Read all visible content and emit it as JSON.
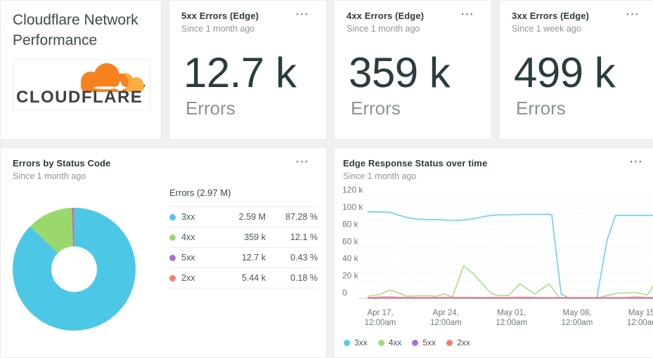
{
  "icons": {
    "overflow_menu": "⋯"
  },
  "header_card": {
    "title": "Cloudflare Network Performance",
    "logo_text": "CLOUDFLARE",
    "logo_colors": {
      "cloud_main": "#f6821f",
      "cloud_light": "#fbad41",
      "text": "#3f4042"
    }
  },
  "billboards": [
    {
      "title": "5xx Errors (Edge)",
      "subtitle": "Since 1 month ago",
      "value": "12.7 k",
      "unit": "Errors"
    },
    {
      "title": "4xx Errors (Edge)",
      "subtitle": "Since 1 month ago",
      "value": "359 k",
      "unit": "Errors"
    },
    {
      "title": "3xx Errors (Edge)",
      "subtitle": "Since 1 week ago",
      "value": "499 k",
      "unit": "Errors"
    }
  ],
  "pie_card": {
    "title": "Errors by Status Code",
    "subtitle": "Since 1 month ago"
  },
  "line_card": {
    "title": "Edge Response Status over time",
    "subtitle": "Since 1 month ago"
  },
  "chart_data": [
    {
      "type": "pie",
      "title": "Errors by Status Code",
      "total_label": "Errors (2.97 M)",
      "legend_position": "right",
      "slices": [
        {
          "name": "3xx",
          "value_label": "2.59 M",
          "pct": 87.28,
          "pct_label": "87.28 %",
          "color": "#4cc8e6"
        },
        {
          "name": "4xx",
          "value_label": "359 k",
          "pct": 12.1,
          "pct_label": "12.1 %",
          "color": "#9ad86f"
        },
        {
          "name": "5xx",
          "value_label": "12.7 k",
          "pct": 0.43,
          "pct_label": "0.43 %",
          "color": "#ab6fd2"
        },
        {
          "name": "2xx",
          "value_label": "5.44 k",
          "pct": 0.18,
          "pct_label": "0.18 %",
          "color": "#f2836b"
        }
      ]
    },
    {
      "type": "line",
      "title": "Edge Response Status over time",
      "x_unit": "days since Apr 17 12:00am",
      "y_unit": "errors, thousands",
      "ylim": [
        0,
        120
      ],
      "grid": true,
      "legend_position": "bottom",
      "y_ticks": [
        {
          "label": "120 k",
          "value": 120
        },
        {
          "label": "100 k",
          "value": 100
        },
        {
          "label": "80 k",
          "value": 80
        },
        {
          "label": "60 k",
          "value": 60
        },
        {
          "label": "40 k",
          "value": 40
        },
        {
          "label": "20 k",
          "value": 20
        },
        {
          "label": "0",
          "value": 0
        }
      ],
      "x_ticks": [
        {
          "day": 0,
          "line1": "Apr 17,",
          "line2": "12:00am"
        },
        {
          "day": 7,
          "line1": "Apr 24,",
          "line2": "12:00am"
        },
        {
          "day": 14,
          "line1": "May 01,",
          "line2": "12:00am"
        },
        {
          "day": 21,
          "line1": "May 08,",
          "line2": "12:00am"
        },
        {
          "day": 28,
          "line1": "May 15,",
          "line2": "12:00am"
        }
      ],
      "series": [
        {
          "name": "3xx",
          "color": "#58cbe9",
          "points": [
            [
              -1.3,
              101
            ],
            [
              0,
              101
            ],
            [
              1,
              100.5
            ],
            [
              2,
              97
            ],
            [
              3,
              94
            ],
            [
              4,
              92.5
            ],
            [
              5,
              92
            ],
            [
              6,
              92
            ],
            [
              7,
              91.5
            ],
            [
              8,
              91
            ],
            [
              9,
              91.5
            ],
            [
              10,
              93
            ],
            [
              11,
              95.5
            ],
            [
              12,
              97
            ],
            [
              13,
              97.5
            ],
            [
              14,
              97.5
            ],
            [
              15,
              98
            ],
            [
              16,
              98
            ],
            [
              17,
              98
            ],
            [
              18,
              98
            ],
            [
              18.3,
              97.5
            ],
            [
              19.3,
              5
            ],
            [
              20,
              1
            ],
            [
              21,
              0.4
            ],
            [
              22,
              0.4
            ],
            [
              23.1,
              0.4
            ],
            [
              24.2,
              68
            ],
            [
              25.1,
              97
            ],
            [
              26,
              97
            ],
            [
              27,
              97
            ],
            [
              28,
              97
            ],
            [
              29.2,
              97
            ]
          ]
        },
        {
          "name": "4xx",
          "color": "#a2d97b",
          "points": [
            [
              -1.3,
              2.5
            ],
            [
              0,
              4.5
            ],
            [
              0.9,
              9.5
            ],
            [
              1.6,
              8
            ],
            [
              2.8,
              2.5
            ],
            [
              4,
              3
            ],
            [
              5,
              3
            ],
            [
              6,
              2.5
            ],
            [
              6.9,
              5
            ],
            [
              7.7,
              1.5
            ],
            [
              8.9,
              38
            ],
            [
              10,
              28
            ],
            [
              10.9,
              17
            ],
            [
              11.8,
              6
            ],
            [
              12.6,
              3
            ],
            [
              13.7,
              3.5
            ],
            [
              14.9,
              17
            ],
            [
              16.5,
              5
            ],
            [
              18,
              17
            ],
            [
              19.1,
              1
            ],
            [
              20,
              0.3
            ],
            [
              21,
              0.3
            ],
            [
              22,
              0.3
            ],
            [
              23.1,
              0.5
            ],
            [
              24.2,
              3
            ],
            [
              25.3,
              6
            ],
            [
              27.2,
              7
            ],
            [
              28.5,
              4
            ],
            [
              29.2,
              16
            ]
          ]
        },
        {
          "name": "5xx",
          "color": "#ab6fd2",
          "points": [
            [
              -1.3,
              0.2
            ],
            [
              5,
              0.25
            ],
            [
              10,
              0.2
            ],
            [
              15,
              0.2
            ],
            [
              20,
              0.15
            ],
            [
              25,
              0.2
            ],
            [
              29.2,
              0.2
            ]
          ]
        },
        {
          "name": "2xx",
          "color": "#ef8173",
          "points": [
            [
              -1.3,
              0.9
            ],
            [
              0.7,
              1.8
            ],
            [
              2,
              1.2
            ],
            [
              5,
              1
            ],
            [
              8,
              1.1
            ],
            [
              11,
              1
            ],
            [
              14,
              1.1
            ],
            [
              15.5,
              1.4
            ],
            [
              17,
              1
            ],
            [
              20,
              0.9
            ],
            [
              23,
              0.9
            ],
            [
              26,
              1
            ],
            [
              27.3,
              1.6
            ],
            [
              28.5,
              1
            ],
            [
              29.2,
              1
            ]
          ]
        }
      ]
    }
  ]
}
